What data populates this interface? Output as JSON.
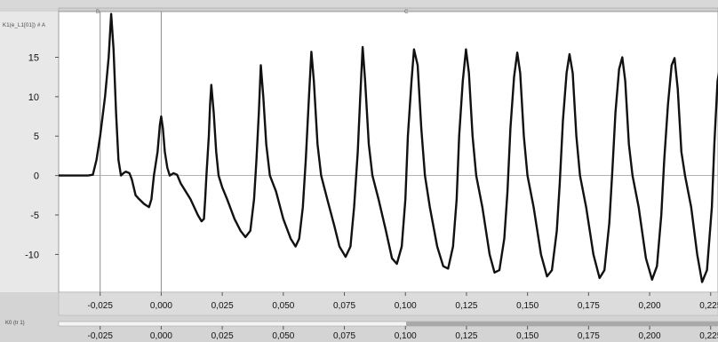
{
  "waveform": {
    "axis_title": "K1(e_L1[01]) # A",
    "cursor_a": "B",
    "cursor_b": "C"
  },
  "timebar": {
    "label": "K0 (tr 1)"
  },
  "chart_data": {
    "type": "line",
    "xlim": [
      -0.042,
      0.228
    ],
    "ylim": [
      -14.8,
      20.8
    ],
    "grid": "horizontal zero line only",
    "x_ticks": [
      "-0,025",
      "0,000",
      "0,025",
      "0,050",
      "0,075",
      "0,100",
      "0,125",
      "0,150",
      "0,175",
      "0,200",
      "0,225"
    ],
    "x_tick_values": [
      -0.025,
      0.0,
      0.025,
      0.05,
      0.075,
      0.1,
      0.125,
      0.15,
      0.175,
      0.2,
      0.225
    ],
    "y_ticks": [
      "15",
      "10",
      "5",
      "0",
      "-5",
      "-10"
    ],
    "y_tick_values": [
      15,
      10,
      5,
      0,
      -5,
      -10
    ],
    "cursors_x": [
      -0.025,
      0.0
    ],
    "series": [
      {
        "color": "#111111",
        "points": [
          [
            -0.042,
            0.0
          ],
          [
            -0.03,
            0.0
          ],
          [
            -0.028,
            0.1
          ],
          [
            -0.0265,
            2.0
          ],
          [
            -0.025,
            5.0
          ],
          [
            -0.023,
            10.0
          ],
          [
            -0.0215,
            15.0
          ],
          [
            -0.0205,
            20.5
          ],
          [
            -0.0195,
            16.0
          ],
          [
            -0.0185,
            8.0
          ],
          [
            -0.0175,
            2.0
          ],
          [
            -0.0165,
            0.0
          ],
          [
            -0.0155,
            0.3
          ],
          [
            -0.0145,
            0.5
          ],
          [
            -0.013,
            0.3
          ],
          [
            -0.012,
            -0.5
          ],
          [
            -0.0105,
            -2.5
          ],
          [
            -0.009,
            -3.0
          ],
          [
            -0.007,
            -3.6
          ],
          [
            -0.005,
            -4.0
          ],
          [
            -0.004,
            -3.0
          ],
          [
            -0.003,
            0.0
          ],
          [
            -0.0015,
            3.0
          ],
          [
            -0.0005,
            6.5
          ],
          [
            0.0,
            7.5
          ],
          [
            0.0007,
            6.0
          ],
          [
            0.0015,
            3.0
          ],
          [
            0.0025,
            1.0
          ],
          [
            0.0035,
            0.0
          ],
          [
            0.005,
            0.3
          ],
          [
            0.0065,
            0.1
          ],
          [
            0.008,
            -1.0
          ],
          [
            0.01,
            -2.0
          ],
          [
            0.012,
            -3.0
          ],
          [
            0.0135,
            -4.0
          ],
          [
            0.015,
            -5.0
          ],
          [
            0.0165,
            -5.8
          ],
          [
            0.0175,
            -5.5
          ],
          [
            0.018,
            -3.0
          ],
          [
            0.0185,
            0.0
          ],
          [
            0.0195,
            5.0
          ],
          [
            0.02,
            9.0
          ],
          [
            0.0205,
            11.5
          ],
          [
            0.0215,
            8.0
          ],
          [
            0.0225,
            3.0
          ],
          [
            0.0235,
            0.0
          ],
          [
            0.025,
            -1.5
          ],
          [
            0.027,
            -3.0
          ],
          [
            0.03,
            -5.5
          ],
          [
            0.0325,
            -7.0
          ],
          [
            0.0345,
            -7.8
          ],
          [
            0.0365,
            -7.0
          ],
          [
            0.038,
            -3.0
          ],
          [
            0.039,
            2.0
          ],
          [
            0.04,
            8.0
          ],
          [
            0.0408,
            14.0
          ],
          [
            0.0418,
            10.0
          ],
          [
            0.043,
            4.0
          ],
          [
            0.0445,
            0.0
          ],
          [
            0.047,
            -2.0
          ],
          [
            0.05,
            -5.5
          ],
          [
            0.053,
            -8.0
          ],
          [
            0.055,
            -9.0
          ],
          [
            0.0565,
            -8.0
          ],
          [
            0.058,
            -4.0
          ],
          [
            0.0592,
            2.0
          ],
          [
            0.0605,
            10.0
          ],
          [
            0.0615,
            15.7
          ],
          [
            0.0625,
            12.0
          ],
          [
            0.064,
            4.0
          ],
          [
            0.0655,
            0.0
          ],
          [
            0.068,
            -3.0
          ],
          [
            0.071,
            -6.5
          ],
          [
            0.073,
            -9.0
          ],
          [
            0.0755,
            -10.3
          ],
          [
            0.0775,
            -9.0
          ],
          [
            0.079,
            -4.0
          ],
          [
            0.0805,
            3.0
          ],
          [
            0.0815,
            10.0
          ],
          [
            0.0825,
            16.3
          ],
          [
            0.0835,
            12.0
          ],
          [
            0.085,
            4.0
          ],
          [
            0.0865,
            0.0
          ],
          [
            0.089,
            -3.0
          ],
          [
            0.092,
            -7.0
          ],
          [
            0.0945,
            -10.5
          ],
          [
            0.0965,
            -11.2
          ],
          [
            0.0985,
            -9.0
          ],
          [
            0.1,
            -3.0
          ],
          [
            0.101,
            5.0
          ],
          [
            0.1025,
            12.0
          ],
          [
            0.1035,
            16.0
          ],
          [
            0.105,
            14.0
          ],
          [
            0.1065,
            6.0
          ],
          [
            0.108,
            0.0
          ],
          [
            0.11,
            -4.0
          ],
          [
            0.113,
            -9.0
          ],
          [
            0.1155,
            -11.5
          ],
          [
            0.1175,
            -11.8
          ],
          [
            0.1195,
            -9.0
          ],
          [
            0.121,
            -3.0
          ],
          [
            0.122,
            5.0
          ],
          [
            0.1235,
            12.0
          ],
          [
            0.1248,
            16.0
          ],
          [
            0.126,
            13.0
          ],
          [
            0.1275,
            5.0
          ],
          [
            0.129,
            0.0
          ],
          [
            0.1315,
            -4.0
          ],
          [
            0.1345,
            -10.0
          ],
          [
            0.1365,
            -12.3
          ],
          [
            0.1385,
            -12.0
          ],
          [
            0.1405,
            -8.0
          ],
          [
            0.1418,
            -2.0
          ],
          [
            0.143,
            6.0
          ],
          [
            0.1445,
            12.5
          ],
          [
            0.1458,
            15.6
          ],
          [
            0.147,
            13.0
          ],
          [
            0.1485,
            5.0
          ],
          [
            0.15,
            0.0
          ],
          [
            0.1525,
            -4.0
          ],
          [
            0.1555,
            -10.0
          ],
          [
            0.158,
            -12.8
          ],
          [
            0.16,
            -12.0
          ],
          [
            0.162,
            -7.0
          ],
          [
            0.1632,
            -1.0
          ],
          [
            0.1645,
            7.0
          ],
          [
            0.166,
            13.0
          ],
          [
            0.1672,
            15.4
          ],
          [
            0.1685,
            13.0
          ],
          [
            0.17,
            5.0
          ],
          [
            0.1715,
            0.0
          ],
          [
            0.174,
            -4.0
          ],
          [
            0.177,
            -10.0
          ],
          [
            0.1795,
            -13.0
          ],
          [
            0.1815,
            -12.0
          ],
          [
            0.1835,
            -6.0
          ],
          [
            0.1848,
            1.0
          ],
          [
            0.186,
            8.0
          ],
          [
            0.1875,
            13.5
          ],
          [
            0.1888,
            15.0
          ],
          [
            0.19,
            12.0
          ],
          [
            0.1915,
            4.0
          ],
          [
            0.193,
            0.0
          ],
          [
            0.1955,
            -4.0
          ],
          [
            0.1985,
            -10.5
          ],
          [
            0.201,
            -13.2
          ],
          [
            0.203,
            -11.5
          ],
          [
            0.2048,
            -5.0
          ],
          [
            0.206,
            2.0
          ],
          [
            0.2075,
            9.0
          ],
          [
            0.209,
            14.0
          ],
          [
            0.2102,
            14.9
          ],
          [
            0.2115,
            11.0
          ],
          [
            0.213,
            3.0
          ],
          [
            0.2145,
            0.0
          ],
          [
            0.217,
            -4.0
          ],
          [
            0.2195,
            -10.0
          ],
          [
            0.2215,
            -13.5
          ],
          [
            0.2235,
            -12.0
          ],
          [
            0.2255,
            -4.0
          ],
          [
            0.2265,
            4.0
          ],
          [
            0.2278,
            12.0
          ],
          [
            0.229,
            14.2
          ],
          [
            0.2302,
            10.0
          ],
          [
            0.2315,
            0.0
          ],
          [
            0.2325,
            -0.6
          ],
          [
            0.234,
            -0.4
          ],
          [
            0.236,
            0.0
          ],
          [
            0.24,
            0.0
          ]
        ]
      }
    ]
  }
}
